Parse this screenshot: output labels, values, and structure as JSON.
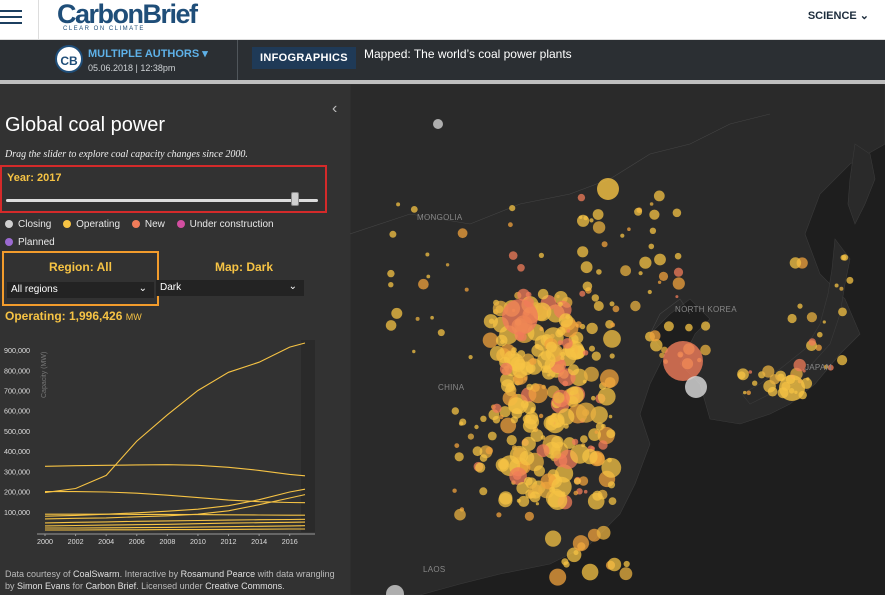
{
  "header": {
    "logo": "CarbonBrief",
    "tagline": "CLEAR ON CLIMATE",
    "nav_science": "SCIENCE ⌄"
  },
  "article": {
    "avatar": "CB",
    "author": "MULTIPLE AUTHORS ▾",
    "date": "05.06.2018 | 12:38pm",
    "badge": "INFOGRAPHICS",
    "title": "Mapped: The world’s coal power plants"
  },
  "panel": {
    "collapse_icon": "‹",
    "title": "Global coal power",
    "subtitle": "Drag the slider to explore coal capacity changes since 2000.",
    "year_label": "Year: 2017",
    "year_value": 2017,
    "year_min": 2000,
    "year_max": 2018,
    "legend": [
      {
        "label": "Closing",
        "color": "#cfcfcf"
      },
      {
        "label": "Operating",
        "color": "#f6c344"
      },
      {
        "label": "New",
        "color": "#f07c5a"
      },
      {
        "label": "Under construction",
        "color": "#d24ea0"
      },
      {
        "label": "Planned",
        "color": "#9b6ad1"
      }
    ],
    "region_label": "Region: All",
    "region_select": "All regions",
    "map_label": "Map: Dark",
    "map_select": "Dark",
    "operating_label": "Operating: 1,996,426",
    "operating_unit": "MW",
    "credits": {
      "p1": "Data courtesy of ",
      "l1": "CoalSwarm",
      "p2": ". Interactive by ",
      "l2": "Rosamund Pearce",
      "p3": " with data wrangling by ",
      "l3": "Simon Evans",
      "p4": " for ",
      "l4": "Carbon Brief",
      "p5": ". Licensed under ",
      "l5": "Creative Commons",
      "p6": "."
    }
  },
  "map": {
    "labels": [
      "MONGOLIA",
      "NORTH KOREA",
      "CHINA",
      "JAPAN",
      "LAOS"
    ]
  },
  "chart_data": {
    "type": "line",
    "ylabel": "Capacity (MW)",
    "xlim": [
      2000,
      2017
    ],
    "ylim": [
      0,
      950000
    ],
    "x_ticks": [
      "2000",
      "2002",
      "2004",
      "2006",
      "2008",
      "2010",
      "2012",
      "2014",
      "2016"
    ],
    "y_ticks": [
      "100,000",
      "200,000",
      "300,000",
      "400,000",
      "500,000",
      "600,000",
      "700,000",
      "800,000",
      "900,000"
    ],
    "x": [
      2000,
      2002,
      2004,
      2006,
      2008,
      2010,
      2012,
      2014,
      2016,
      2017
    ],
    "series": [
      {
        "values": [
          195000,
          215000,
          280000,
          450000,
          580000,
          700000,
          790000,
          840000,
          915000,
          935000
        ]
      },
      {
        "values": [
          325000,
          328000,
          330000,
          332000,
          333000,
          330000,
          320000,
          305000,
          285000,
          278000
        ]
      },
      {
        "values": [
          200000,
          200000,
          198000,
          192000,
          182000,
          170000,
          158000,
          150000,
          146000,
          145000
        ]
      },
      {
        "values": [
          78000,
          82000,
          88000,
          95000,
          103000,
          113000,
          130000,
          160000,
          198000,
          212000
        ]
      },
      {
        "values": [
          65000,
          68000,
          70000,
          75000,
          80000,
          88000,
          105000,
          135000,
          168000,
          185000
        ]
      },
      {
        "values": [
          88000,
          88000,
          88000,
          87000,
          87000,
          86000,
          85000,
          84000,
          83000,
          83000
        ]
      },
      {
        "values": [
          45000,
          48000,
          50000,
          53000,
          55000,
          57000,
          59000,
          61000,
          62000,
          63000
        ]
      },
      {
        "values": [
          30000,
          32000,
          34000,
          36000,
          38000,
          41000,
          44000,
          46000,
          48000,
          49000
        ]
      },
      {
        "values": [
          20000,
          20000,
          21000,
          22000,
          23000,
          24000,
          26000,
          28000,
          30000,
          31000
        ]
      },
      {
        "values": [
          10000,
          10000,
          11000,
          11000,
          12000,
          12000,
          13000,
          14000,
          15000,
          15000
        ]
      }
    ]
  }
}
